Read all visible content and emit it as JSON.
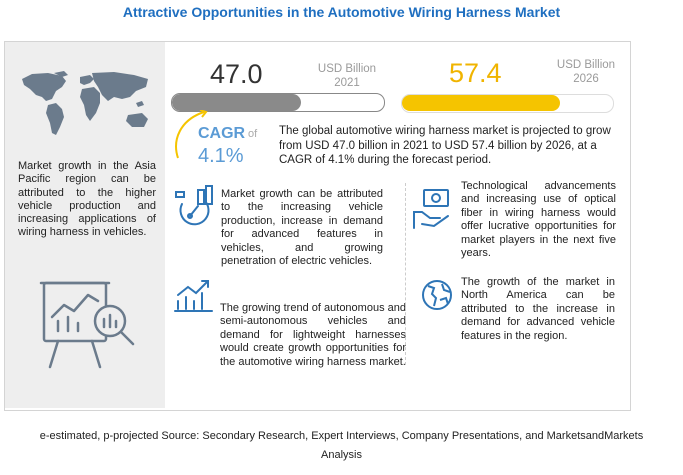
{
  "title": "Attractive Opportunities in the Automotive Wiring Harness Market",
  "market_2021": {
    "value": "47.0",
    "unit": "USD Billion",
    "year": "2021",
    "bar_fill_fraction": 0.61
  },
  "market_2026": {
    "value": "57.4",
    "unit": "USD Billion",
    "year": "2026",
    "bar_fill_fraction": 0.75
  },
  "cagr": {
    "label": "CAGR",
    "of": "of",
    "value": "4.1%",
    "description": "The global automotive wiring harness market is projected to grow from USD 47.0 billion in 2021 to USD 57.4 billion by 2026, at a CAGR of 4.1% during the forecast period."
  },
  "left_panel": {
    "text": "Market growth in the Asia Pacific region can be attributed to the higher vehicle production and increasing applications of wiring harness in vehicles."
  },
  "blocks": [
    {
      "text": "Market growth can be attributed to the increasing vehicle production, increase in demand for advanced features in vehicles, and growing penetration of electric vehicles.",
      "icon": "gauge-chart-icon"
    },
    {
      "text": "The growing trend of autonomous and semi-autonomous vehicles and demand for lightweight harnesses would create growth opportunities for the automotive wiring harness market.",
      "icon": "bar-chart-growth-icon"
    },
    {
      "text": "Technological advancements and increasing use of optical fiber in wiring harness would offer lucrative opportunities for market players in the next five years.",
      "icon": "money-hand-icon"
    },
    {
      "text": "The growth of the market in North America can be attributed to the increase in demand for advanced vehicle features in the region.",
      "icon": "globe-icon"
    }
  ],
  "footer": {
    "line1": "e-estimated, p-projected Source: Secondary Research, Expert Interviews, Company Presentations, and MarketsandMarkets",
    "line2": "Analysis"
  },
  "colors": {
    "title": "#1f6fc0",
    "accent_yellow": "#f5c400",
    "accent_blue": "#5b9bd5",
    "bar_grey": "#8a8a8a",
    "map_grey": "#6b7b8c"
  }
}
